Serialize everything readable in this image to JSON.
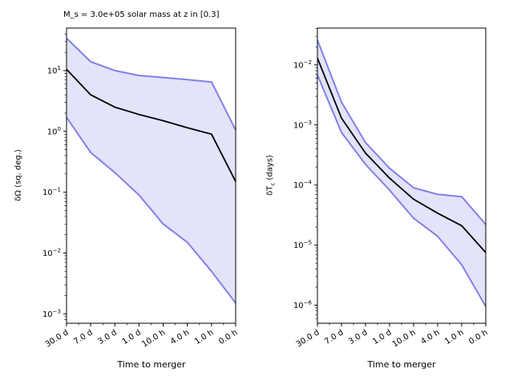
{
  "figure": {
    "background": "#ffffff"
  },
  "colors": {
    "band_fill": "#e3e3f9",
    "band_line": "#8080e8",
    "median_line": "#000000",
    "axis": "#000000",
    "text": "#000000"
  },
  "chart_data": [
    {
      "type": "line",
      "title": "M_s = 3.0e+05 solar mass at z in [0.3]",
      "xlabel": "Time to merger",
      "ylabel": {
        "main": "δΩ",
        "sub": "",
        "rest": " (sq. deg.)"
      },
      "yscale": "log",
      "ylim": [
        0.0007,
        50
      ],
      "ytick_exponents": [
        1,
        0,
        -1,
        -2,
        -3
      ],
      "grid": false,
      "legend": "none",
      "categories": [
        "30.0 d",
        "7.0 d",
        "3.0 d",
        "1.0 d",
        "10.0 h",
        "4.0 h",
        "1.0 h",
        "0.0 h"
      ],
      "series": [
        {
          "name": "median",
          "values": [
            10.5,
            4.0,
            2.5,
            1.9,
            1.5,
            1.15,
            0.9,
            0.15
          ]
        },
        {
          "name": "upper_bound",
          "values": [
            34,
            14,
            10,
            8.3,
            7.7,
            7.1,
            6.5,
            1.05
          ]
        },
        {
          "name": "lower_bound",
          "values": [
            1.7,
            0.45,
            0.21,
            0.09,
            0.03,
            0.015,
            0.005,
            0.0015
          ]
        }
      ]
    },
    {
      "type": "line",
      "title": "",
      "xlabel": "Time to merger",
      "ylabel": {
        "main": "δT",
        "sub": "c",
        "rest": " (days)"
      },
      "yscale": "log",
      "ylim": [
        5e-07,
        0.041
      ],
      "ytick_exponents": [
        -2,
        -3,
        -4,
        -5,
        -6
      ],
      "grid": false,
      "legend": "none",
      "categories": [
        "30.0 d",
        "7.0 d",
        "3.0 d",
        "1.0 d",
        "10.0 h",
        "4.0 h",
        "1.0 h",
        "0.0 h"
      ],
      "series": [
        {
          "name": "median",
          "values": [
            0.013,
            0.0013,
            0.00034,
            0.00013,
            5.8e-05,
            3.4e-05,
            2.1e-05,
            7.5e-06
          ]
        },
        {
          "name": "upper_bound",
          "values": [
            0.026,
            0.0024,
            0.00051,
            0.00019,
            9e-05,
            7e-05,
            6.4e-05,
            2.2e-05
          ]
        },
        {
          "name": "lower_bound",
          "values": [
            0.0068,
            0.00075,
            0.00022,
            8.2e-05,
            2.8e-05,
            1.4e-05,
            4.7e-06,
            9.5e-07
          ]
        }
      ]
    }
  ]
}
